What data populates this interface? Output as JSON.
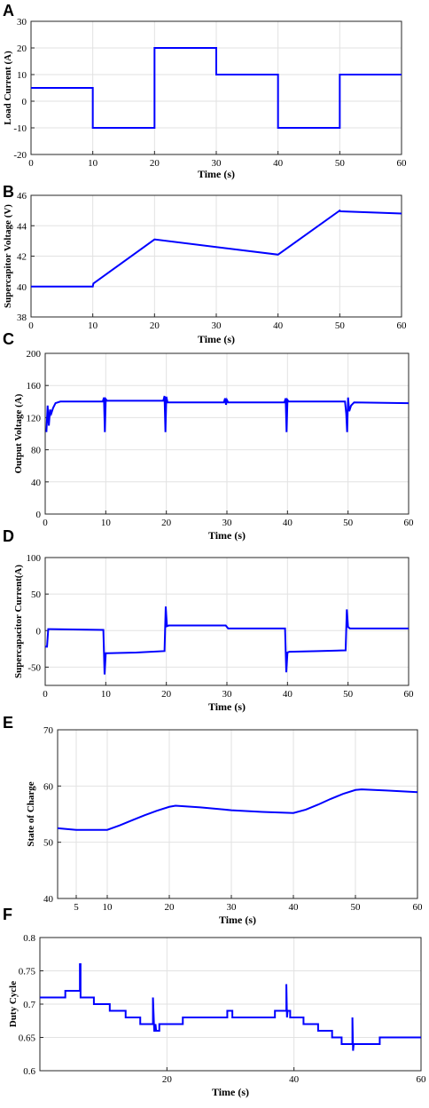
{
  "chart_data": [
    {
      "panel": "A",
      "type": "line",
      "xlabel": "Time (s)",
      "ylabel": "Load Current (A)",
      "xlim": [
        0,
        60
      ],
      "ylim": [
        -20,
        30
      ],
      "xticks": [
        0,
        10,
        20,
        30,
        40,
        50,
        60
      ],
      "yticks": [
        -20,
        -10,
        0,
        10,
        20,
        30
      ],
      "color": "#0000ff",
      "series": [
        {
          "x": [
            0,
            10,
            10,
            20,
            20,
            30,
            30,
            40,
            40,
            50,
            50,
            60
          ],
          "y": [
            5,
            5,
            -10,
            -10,
            20,
            20,
            10,
            10,
            -10,
            -10,
            10,
            10
          ]
        }
      ]
    },
    {
      "panel": "B",
      "type": "line",
      "xlabel": "Time (s)",
      "ylabel": "Supercapitor Voltage (V)",
      "xlim": [
        0,
        60
      ],
      "ylim": [
        38,
        46
      ],
      "xticks": [
        0,
        10,
        20,
        30,
        40,
        50,
        60
      ],
      "yticks": [
        38,
        40,
        42,
        44,
        46
      ],
      "color": "#0000ff",
      "series": [
        {
          "x": [
            0,
            10,
            10.1,
            20,
            40,
            50,
            50.1,
            60
          ],
          "y": [
            40,
            40,
            40.2,
            43.1,
            42.1,
            45,
            44.95,
            44.8
          ]
        }
      ]
    },
    {
      "panel": "C",
      "type": "line",
      "xlabel": "Time (s)",
      "ylabel": "Output Voltage (A)",
      "xlim": [
        0,
        60
      ],
      "ylim": [
        0,
        200
      ],
      "xticks": [
        0,
        10,
        20,
        30,
        40,
        50,
        60
      ],
      "yticks": [
        0,
        40,
        80,
        120,
        160,
        200
      ],
      "color": "#0000ff",
      "series": [
        {
          "x": [
            0.2,
            0.4,
            0.6,
            0.8,
            1.0,
            1.3,
            1.7,
            2.5,
            9.5,
            9.7,
            9.85,
            10.0,
            10.2,
            19.5,
            19.7,
            19.85,
            20.0,
            20.2,
            29.5,
            29.7,
            29.85,
            30.0,
            30.2,
            39.5,
            39.7,
            39.85,
            40.0,
            40.2,
            49.5,
            49.7,
            49.85,
            50.0,
            50.2,
            50.5,
            51,
            60
          ],
          "y": [
            102,
            135,
            110,
            130,
            125,
            132,
            138,
            140,
            140,
            145,
            102,
            143,
            141,
            141,
            147,
            102,
            146,
            139,
            139,
            144,
            136,
            142,
            139,
            139,
            144,
            102,
            142,
            140,
            140,
            125,
            102,
            145,
            128,
            135,
            139,
            138
          ]
        }
      ]
    },
    {
      "panel": "D",
      "type": "line",
      "xlabel": "Time (s)",
      "ylabel": "Supercapacitor Current(A)",
      "xlim": [
        0,
        60
      ],
      "ylim": [
        -75,
        100
      ],
      "xticks": [
        0,
        10,
        20,
        30,
        40,
        50,
        60
      ],
      "yticks": [
        -50,
        0,
        50,
        100
      ],
      "color": "#0000ff",
      "series": [
        {
          "x": [
            0,
            0.3,
            0.5,
            0.7,
            9.6,
            9.8,
            10.0,
            10.3,
            15,
            19.7,
            19.9,
            20.1,
            20.4,
            29.8,
            30.2,
            39.6,
            39.8,
            40.0,
            40.3,
            45,
            49.6,
            49.8,
            50.0,
            50.3,
            50.6,
            60
          ],
          "y": [
            -22,
            -22,
            2,
            2,
            1,
            -60,
            -31,
            -31,
            -30,
            -28,
            33,
            6,
            7,
            7,
            3,
            3,
            -57,
            -30,
            -29,
            -28,
            -27,
            29,
            5,
            3,
            3,
            3
          ]
        }
      ]
    },
    {
      "panel": "E",
      "type": "line",
      "xlabel": "Time (s)",
      "ylabel": "State of Charge",
      "xlim": [
        2,
        60
      ],
      "ylim": [
        40,
        70
      ],
      "xticks": [
        5,
        10,
        20,
        30,
        40,
        50,
        60
      ],
      "yticks": [
        40,
        50,
        60,
        70
      ],
      "color": "#0000ff",
      "series": [
        {
          "x": [
            2,
            5,
            10,
            12,
            14,
            16,
            18,
            20,
            21,
            25,
            30,
            35,
            40,
            42,
            44,
            46,
            48,
            50,
            51,
            55,
            60
          ],
          "y": [
            52.5,
            52.2,
            52.2,
            53,
            53.9,
            54.8,
            55.6,
            56.3,
            56.5,
            56.2,
            55.7,
            55.4,
            55.2,
            55.8,
            56.7,
            57.7,
            58.6,
            59.3,
            59.4,
            59.2,
            58.9
          ]
        }
      ]
    },
    {
      "panel": "F",
      "type": "line",
      "xlabel": "Time (s)",
      "ylabel": "Duty Cycle",
      "xlim": [
        0,
        60
      ],
      "ylim": [
        0.6,
        0.8
      ],
      "xticks": [
        20,
        40,
        60
      ],
      "yticks": [
        0.6,
        0.65,
        0.7,
        0.75,
        0.8
      ],
      "color": "#0000ff",
      "series": [
        {
          "x": [
            0,
            4,
            4,
            6.3,
            6.3,
            6.4,
            6.4,
            8.5,
            8.5,
            11,
            11,
            13.5,
            13.5,
            15.8,
            15.8,
            17.8,
            17.8,
            18,
            18.1,
            18.2,
            18.3,
            18.8,
            18.8,
            22.5,
            22.5,
            29.5,
            29.5,
            30.3,
            30.3,
            37,
            37,
            38.8,
            38.8,
            38.9,
            39,
            39.4,
            39.4,
            41.5,
            41.5,
            43.8,
            43.8,
            46,
            46,
            47.5,
            47.5,
            49.2,
            49.2,
            49.3,
            49.4,
            50,
            50,
            53.5,
            53.5,
            60
          ],
          "y": [
            0.71,
            0.71,
            0.72,
            0.72,
            0.76,
            0.76,
            0.71,
            0.71,
            0.7,
            0.7,
            0.69,
            0.69,
            0.68,
            0.68,
            0.67,
            0.67,
            0.71,
            0.66,
            0.66,
            0.67,
            0.66,
            0.66,
            0.67,
            0.67,
            0.68,
            0.68,
            0.69,
            0.69,
            0.68,
            0.68,
            0.69,
            0.69,
            0.73,
            0.68,
            0.69,
            0.69,
            0.68,
            0.68,
            0.67,
            0.67,
            0.66,
            0.66,
            0.65,
            0.65,
            0.64,
            0.64,
            0.68,
            0.63,
            0.64,
            0.64,
            0.64,
            0.64,
            0.65,
            0.65
          ]
        }
      ]
    }
  ]
}
